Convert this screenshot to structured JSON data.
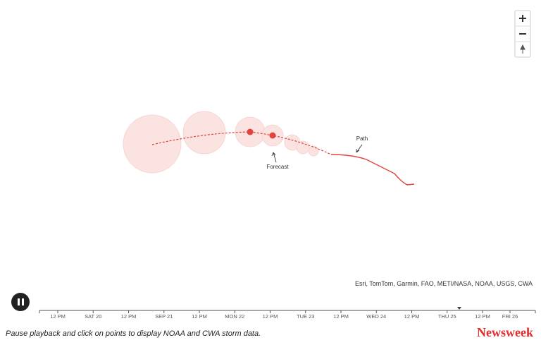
{
  "map": {
    "labels": {
      "path": "Path",
      "forecast": "Forecast"
    },
    "attribution": "Esri, TomTom, Garmin, FAO, METI/NASA, NOAA, USGS, CWA"
  },
  "timeline": {
    "ticks": [
      "12 PM",
      "SAT 20",
      "12 PM",
      "SEP 21",
      "12 PM",
      "MON 22",
      "12 PM",
      "TUE 23",
      "12 PM",
      "WED 24",
      "12 PM",
      "THU 25",
      "12 PM",
      "FRI 26"
    ]
  },
  "footer": {
    "caption": "Pause playback and click on points to display NOAA and CWA storm data.",
    "logo": "Newsweek"
  }
}
